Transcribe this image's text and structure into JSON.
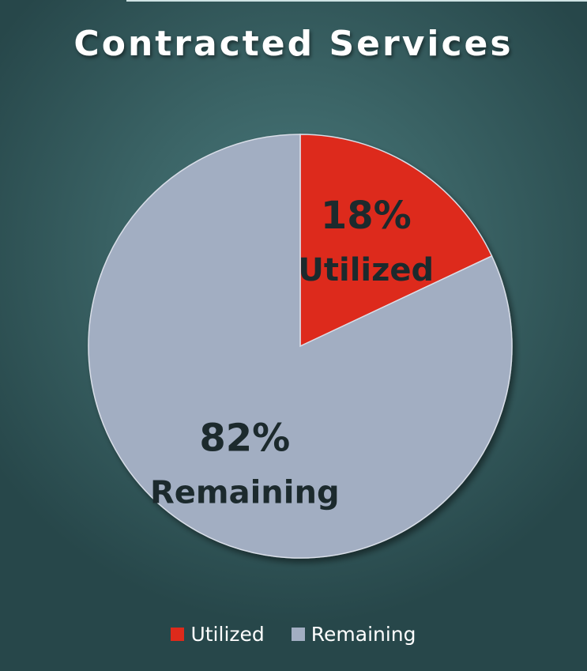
{
  "chart_data": {
    "type": "pie",
    "title": "Contracted Services",
    "slices": [
      {
        "label": "Utilized",
        "value": 18,
        "value_label": "18%",
        "color": "#dd2a1b"
      },
      {
        "label": "Remaining",
        "value": 82,
        "value_label": "82%",
        "color": "#a2aec2"
      }
    ],
    "legend_position": "bottom"
  }
}
